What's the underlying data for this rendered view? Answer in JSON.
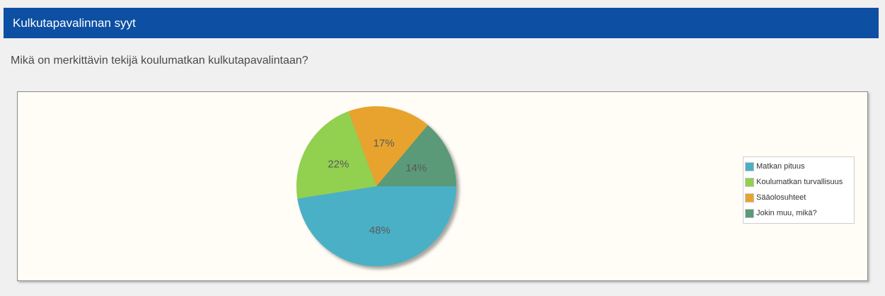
{
  "header": {
    "title": "Kulkutapavalinnan syyt"
  },
  "question": {
    "text": "Mikä on merkittävin tekijä koulumatkan kulkutapavalintaan?"
  },
  "chart_data": {
    "type": "pie",
    "title": "",
    "categories": [
      "Matkan pituus",
      "Koulumatkan turvallisuus",
      "Sääolosuhteet",
      "Jokin muu, mikä?"
    ],
    "values": [
      48,
      22,
      17,
      14
    ],
    "labels": [
      "48%",
      "22%",
      "17%",
      "14%"
    ],
    "colors": [
      "#4ab0c6",
      "#92d050",
      "#e8a32e",
      "#5a9a78"
    ],
    "legend_position": "right"
  }
}
